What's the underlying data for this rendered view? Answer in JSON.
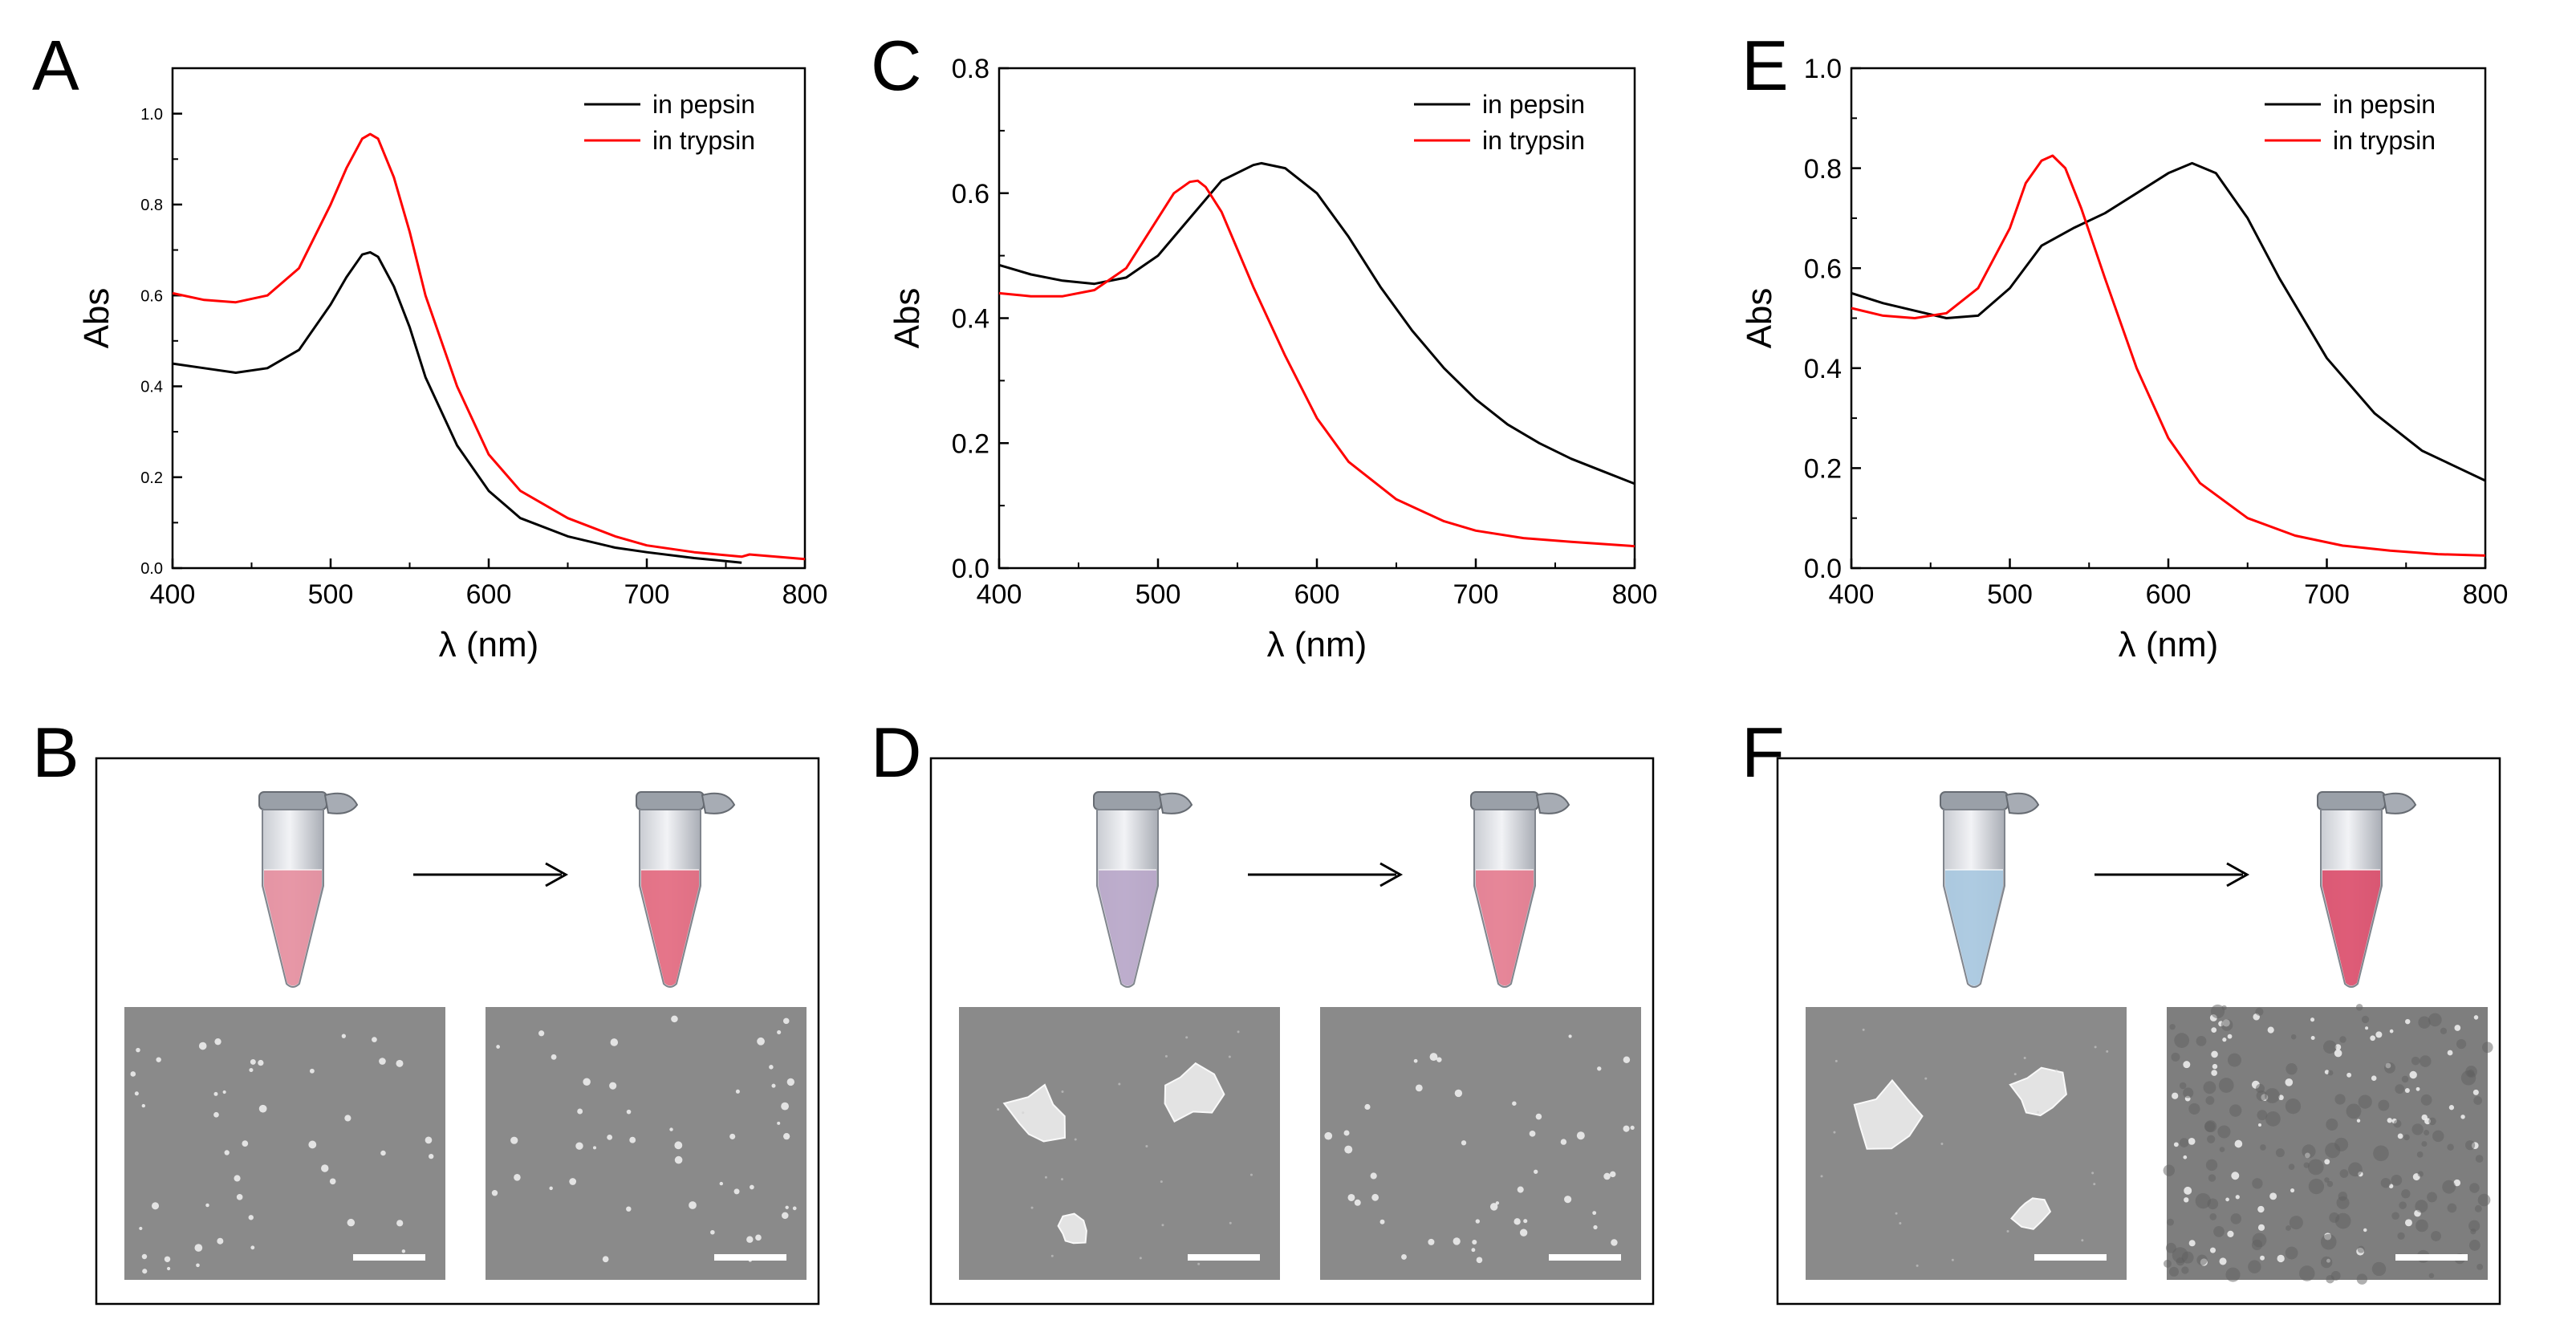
{
  "panel_labels": [
    "A",
    "B",
    "C",
    "D",
    "E",
    "F"
  ],
  "chart_data": [
    {
      "panel": "A",
      "type": "line",
      "xlabel": "λ (nm)",
      "ylabel": "Abs",
      "xlim": [
        400,
        800
      ],
      "ylim": [
        0,
        1.1
      ],
      "xticks": [
        400,
        500,
        600,
        700,
        800
      ],
      "yticks": [
        0.0,
        0.2,
        0.4,
        0.6,
        0.8,
        1.0
      ],
      "tick_labels_x": [
        "400",
        "500",
        "600",
        "700",
        "800"
      ],
      "tick_labels_y": [
        "0.0",
        "0.2",
        "0.4",
        "0.6",
        "0.8",
        "1.0"
      ],
      "legend": "top-right",
      "series": [
        {
          "name": "in pepsin",
          "color": "#000000",
          "x": [
            400,
            420,
            440,
            460,
            480,
            500,
            510,
            520,
            525,
            530,
            540,
            550,
            560,
            580,
            600,
            620,
            650,
            680,
            700,
            730,
            760
          ],
          "y": [
            0.45,
            0.44,
            0.43,
            0.44,
            0.48,
            0.58,
            0.64,
            0.69,
            0.695,
            0.685,
            0.62,
            0.53,
            0.42,
            0.27,
            0.17,
            0.11,
            0.07,
            0.045,
            0.035,
            0.022,
            0.012
          ]
        },
        {
          "name": "in trypsin",
          "color": "#ff0000",
          "x": [
            400,
            420,
            440,
            460,
            480,
            500,
            510,
            520,
            525,
            530,
            540,
            550,
            560,
            580,
            600,
            620,
            650,
            680,
            700,
            730,
            760,
            765,
            800
          ],
          "y": [
            0.605,
            0.59,
            0.585,
            0.6,
            0.66,
            0.8,
            0.88,
            0.945,
            0.955,
            0.945,
            0.86,
            0.74,
            0.6,
            0.4,
            0.25,
            0.17,
            0.11,
            0.07,
            0.05,
            0.035,
            0.025,
            0.03,
            0.02
          ]
        }
      ]
    },
    {
      "panel": "C",
      "type": "line",
      "xlabel": "λ (nm)",
      "ylabel": "Abs",
      "xlim": [
        400,
        800
      ],
      "ylim": [
        0,
        0.8
      ],
      "xticks": [
        400,
        500,
        600,
        700,
        800
      ],
      "yticks": [
        0.0,
        0.2,
        0.4,
        0.6,
        0.8
      ],
      "tick_labels_x": [
        "400",
        "500",
        "600",
        "700",
        "800"
      ],
      "tick_labels_y": [
        "0.0",
        "0.2",
        "0.4",
        "0.6",
        "0.8"
      ],
      "legend": "top-right",
      "series": [
        {
          "name": "in pepsin",
          "color": "#000000",
          "x": [
            400,
            420,
            440,
            460,
            480,
            500,
            520,
            540,
            560,
            565,
            580,
            600,
            620,
            640,
            660,
            680,
            700,
            720,
            740,
            760,
            780,
            800
          ],
          "y": [
            0.485,
            0.47,
            0.46,
            0.455,
            0.465,
            0.5,
            0.56,
            0.62,
            0.645,
            0.648,
            0.64,
            0.6,
            0.53,
            0.45,
            0.38,
            0.32,
            0.27,
            0.23,
            0.2,
            0.175,
            0.155,
            0.135
          ]
        },
        {
          "name": "in trypsin",
          "color": "#ff0000",
          "x": [
            400,
            420,
            440,
            460,
            480,
            500,
            510,
            520,
            525,
            530,
            540,
            560,
            580,
            600,
            620,
            650,
            680,
            700,
            730,
            760,
            800
          ],
          "y": [
            0.44,
            0.435,
            0.435,
            0.445,
            0.48,
            0.56,
            0.6,
            0.618,
            0.62,
            0.61,
            0.57,
            0.45,
            0.34,
            0.24,
            0.17,
            0.11,
            0.075,
            0.06,
            0.048,
            0.042,
            0.035
          ]
        }
      ]
    },
    {
      "panel": "E",
      "type": "line",
      "xlabel": "λ (nm)",
      "ylabel": "Abs",
      "xlim": [
        400,
        800
      ],
      "ylim": [
        0,
        1.0
      ],
      "xticks": [
        400,
        500,
        600,
        700,
        800
      ],
      "yticks": [
        0.0,
        0.2,
        0.4,
        0.6,
        0.8,
        1.0
      ],
      "tick_labels_x": [
        "400",
        "500",
        "600",
        "700",
        "800"
      ],
      "tick_labels_y": [
        "0.0",
        "0.2",
        "0.4",
        "0.6",
        "0.8",
        "1.0"
      ],
      "legend": "top-right",
      "series": [
        {
          "name": "in pepsin",
          "color": "#000000",
          "x": [
            400,
            420,
            440,
            460,
            480,
            500,
            520,
            540,
            560,
            580,
            600,
            615,
            630,
            650,
            670,
            700,
            730,
            760,
            780,
            800
          ],
          "y": [
            0.55,
            0.53,
            0.515,
            0.5,
            0.505,
            0.56,
            0.645,
            0.68,
            0.71,
            0.75,
            0.79,
            0.81,
            0.79,
            0.7,
            0.58,
            0.42,
            0.31,
            0.235,
            0.205,
            0.175
          ]
        },
        {
          "name": "in trypsin",
          "color": "#ff0000",
          "x": [
            400,
            420,
            440,
            460,
            480,
            500,
            510,
            520,
            527,
            535,
            545,
            560,
            580,
            600,
            620,
            650,
            680,
            710,
            740,
            770,
            800
          ],
          "y": [
            0.52,
            0.505,
            0.5,
            0.51,
            0.56,
            0.68,
            0.77,
            0.815,
            0.825,
            0.8,
            0.72,
            0.58,
            0.4,
            0.26,
            0.17,
            0.1,
            0.065,
            0.045,
            0.035,
            0.028,
            0.025
          ]
        }
      ]
    }
  ],
  "colors": {
    "pepsin_line": "#000000",
    "trypsin_line": "#ff0000",
    "sem_background": "#8a8a8a",
    "scale_bar": "#ffffff"
  },
  "image_panels": [
    {
      "panel": "B",
      "tube_before_color": "#e68fa0",
      "tube_after_color": "#e46a80",
      "sem_left": "dispersed",
      "sem_right": "dispersed"
    },
    {
      "panel": "D",
      "tube_before_color": "#b8a7c9",
      "tube_after_color": "#e57d90",
      "sem_left": "aggregated",
      "sem_right": "dispersed"
    },
    {
      "panel": "F",
      "tube_before_color": "#a8c8df",
      "tube_after_color": "#dc4f6c",
      "sem_left": "aggregated",
      "sem_right": "dispersed"
    }
  ]
}
